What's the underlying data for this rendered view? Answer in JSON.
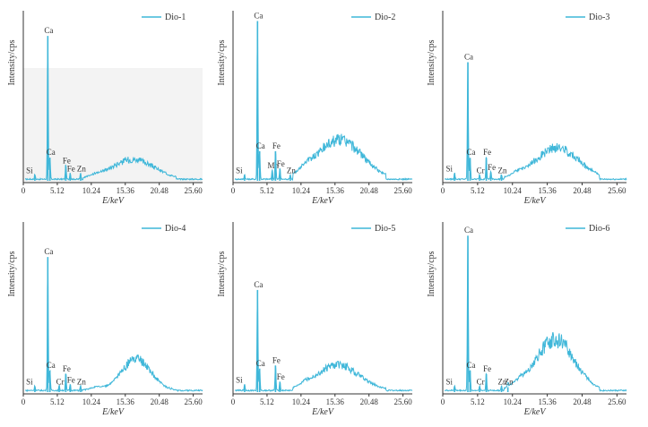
{
  "chart_data": [
    {
      "type": "line",
      "legend": "Dio-1",
      "legend_position": "top-right",
      "xlabel": "E/keV",
      "ylabel": "Intensity/cps",
      "xlim": [
        0,
        27
      ],
      "ylim": [
        0,
        100
      ],
      "xticks": [
        "0",
        "5.12",
        "10.24",
        "15.36",
        "20.48",
        "25.60"
      ],
      "xtick_values": [
        0,
        5.12,
        10.24,
        15.36,
        20.48,
        25.6
      ],
      "color": "#3fb7d9",
      "shaded_region": true,
      "peaks": [
        {
          "label": "Si",
          "x": 1.74,
          "y": 3
        },
        {
          "label": "Ca",
          "x": 3.69,
          "y": 88
        },
        {
          "label": "Ca",
          "x": 4.01,
          "y": 14
        },
        {
          "label": "Fe",
          "x": 6.4,
          "y": 9
        },
        {
          "label": "Fe",
          "x": 7.06,
          "y": 4
        },
        {
          "label": "Zn",
          "x": 8.63,
          "y": 4
        }
      ],
      "hump": {
        "center": 16.5,
        "width": 3.2,
        "height": 14,
        "start": 9,
        "end": 23
      }
    },
    {
      "type": "line",
      "legend": "Dio-2",
      "legend_position": "top-right",
      "xlabel": "E/keV",
      "ylabel": "Intensity/cps",
      "xlim": [
        0,
        27
      ],
      "ylim": [
        0,
        100
      ],
      "xticks": [
        "0",
        "5.12",
        "10.24",
        "15.36",
        "20.48",
        "25.60"
      ],
      "xtick_values": [
        0,
        5.12,
        10.24,
        15.36,
        20.48,
        25.6
      ],
      "color": "#3fb7d9",
      "peaks": [
        {
          "label": "Si",
          "x": 1.74,
          "y": 3
        },
        {
          "label": "Ca",
          "x": 3.69,
          "y": 97
        },
        {
          "label": "Ca",
          "x": 4.01,
          "y": 18
        },
        {
          "label": "Mn",
          "x": 5.9,
          "y": 6
        },
        {
          "label": "Fe",
          "x": 6.4,
          "y": 18
        },
        {
          "label": "Fe",
          "x": 7.06,
          "y": 7
        },
        {
          "label": "Zn",
          "x": 8.63,
          "y": 3
        }
      ],
      "hump": {
        "center": 16.0,
        "width": 3.4,
        "height": 28,
        "start": 9,
        "end": 23
      }
    },
    {
      "type": "line",
      "legend": "Dio-3",
      "legend_position": "top-right",
      "xlabel": "E/keV",
      "ylabel": "Intensity/cps",
      "xlim": [
        0,
        27
      ],
      "ylim": [
        0,
        100
      ],
      "xticks": [
        "0",
        "5.12",
        "10.24",
        "15.36",
        "20.48",
        "25.60"
      ],
      "xtick_values": [
        0,
        5.12,
        10.24,
        15.36,
        20.48,
        25.6
      ],
      "color": "#3fb7d9",
      "peaks": [
        {
          "label": "Si",
          "x": 1.74,
          "y": 4
        },
        {
          "label": "Ca",
          "x": 3.69,
          "y": 72
        },
        {
          "label": "Cr",
          "x": 5.41,
          "y": 3
        },
        {
          "label": "Ca",
          "x": 4.01,
          "y": 14
        },
        {
          "label": "Fe",
          "x": 6.4,
          "y": 14
        },
        {
          "label": "Fe",
          "x": 7.06,
          "y": 5
        },
        {
          "label": "Zn",
          "x": 8.63,
          "y": 3
        }
      ],
      "hump": {
        "center": 16.8,
        "width": 3.2,
        "height": 22,
        "start": 9,
        "end": 23
      }
    },
    {
      "type": "line",
      "legend": "Dio-4",
      "legend_position": "top-right",
      "xlabel": "E/keV",
      "ylabel": "Intensity/cps",
      "xlim": [
        0,
        27
      ],
      "ylim": [
        0,
        100
      ],
      "xticks": [
        "0",
        "5.12",
        "10.24",
        "15.36",
        "20.48",
        "25.60"
      ],
      "xtick_values": [
        0,
        5.12,
        10.24,
        15.36,
        20.48,
        25.6
      ],
      "color": "#3fb7d9",
      "peaks": [
        {
          "label": "Si",
          "x": 1.74,
          "y": 3
        },
        {
          "label": "Ca",
          "x": 3.69,
          "y": 82
        },
        {
          "label": "Ca",
          "x": 4.01,
          "y": 13
        },
        {
          "label": "Cr",
          "x": 5.41,
          "y": 3
        },
        {
          "label": "Fe",
          "x": 6.4,
          "y": 11
        },
        {
          "label": "Fe",
          "x": 7.06,
          "y": 4
        },
        {
          "label": "Zn",
          "x": 8.63,
          "y": 3
        }
      ],
      "hump": {
        "center": 17.0,
        "width": 2.2,
        "height": 22,
        "start": 9,
        "end": 23
      }
    },
    {
      "type": "line",
      "legend": "Dio-5",
      "legend_position": "top-right",
      "xlabel": "E/keV",
      "ylabel": "Intensity/cps",
      "xlim": [
        0,
        27
      ],
      "ylim": [
        0,
        100
      ],
      "xticks": [
        "0",
        "5.12",
        "10.24",
        "15.36",
        "20.48",
        "25.60"
      ],
      "xtick_values": [
        0,
        5.12,
        10.24,
        15.36,
        20.48,
        25.6
      ],
      "color": "#3fb7d9",
      "peaks": [
        {
          "label": "Si",
          "x": 1.74,
          "y": 4
        },
        {
          "label": "Ca",
          "x": 3.69,
          "y": 62
        },
        {
          "label": "Ca",
          "x": 4.01,
          "y": 14
        },
        {
          "label": "Fe",
          "x": 6.4,
          "y": 16
        },
        {
          "label": "Fe",
          "x": 7.06,
          "y": 6
        }
      ],
      "hump": {
        "center": 15.8,
        "width": 3.2,
        "height": 18,
        "start": 9,
        "end": 23
      }
    },
    {
      "type": "line",
      "legend": "Dio-6",
      "legend_position": "top-right",
      "xlabel": "E/keV",
      "ylabel": "Intensity/cps",
      "xlim": [
        0,
        27
      ],
      "ylim": [
        0,
        100
      ],
      "xticks": [
        "0",
        "5.12",
        "10.24",
        "15.36",
        "20.48",
        "25.60"
      ],
      "xtick_values": [
        0,
        5.12,
        10.24,
        15.36,
        20.48,
        25.6
      ],
      "color": "#3fb7d9",
      "peaks": [
        {
          "label": "Si",
          "x": 1.74,
          "y": 3
        },
        {
          "label": "Ca",
          "x": 3.69,
          "y": 95
        },
        {
          "label": "Ca",
          "x": 4.01,
          "y": 13
        },
        {
          "label": "Cr",
          "x": 5.41,
          "y": 3
        },
        {
          "label": "Fe",
          "x": 6.4,
          "y": 11
        },
        {
          "label": "Zn",
          "x": 8.63,
          "y": 3
        },
        {
          "label": "Zn",
          "x": 9.57,
          "y": 3
        }
      ],
      "hump": {
        "center": 16.5,
        "width": 2.8,
        "height": 36,
        "start": 9,
        "end": 23
      }
    }
  ]
}
